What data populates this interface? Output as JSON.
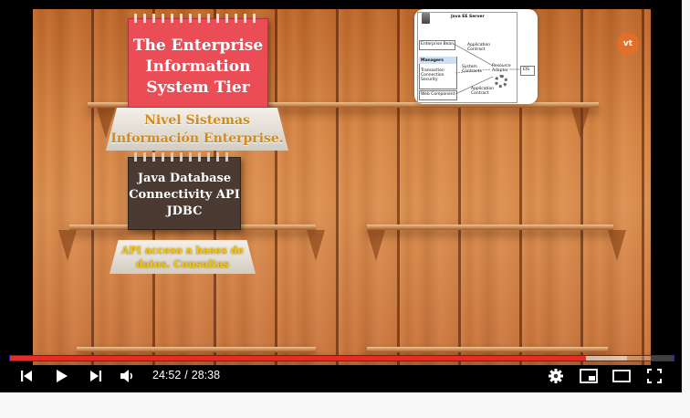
{
  "video": {
    "notepad_lines": [
      "The Enterprise",
      "Information",
      "System Tier"
    ],
    "banner1_lines": [
      "Nivel Sistemas",
      "Información Enterprise."
    ],
    "chalkboard_lines": [
      "Java Database",
      "Connectivity API",
      "JDBC"
    ],
    "banner2_lines": [
      "API acceso a bases de",
      "datos. Consultas"
    ],
    "logo_text": "vt",
    "diagram": {
      "title": "Java EE Server",
      "enterprise_bean": "Enterprise Bean",
      "application_contract_top": [
        "Application",
        "Contract"
      ],
      "managers": "Managers",
      "managers_items": [
        "Transaction",
        "Connection",
        "Security"
      ],
      "system_contracts": [
        "System",
        "Contracts"
      ],
      "resource_adapter": [
        "Resource",
        "Adapter"
      ],
      "eis": "EIS",
      "web_component": "Web Component",
      "application_contract_bottom": [
        "Application",
        "Contract"
      ]
    }
  },
  "player": {
    "current_time": "24:52",
    "separator": "/",
    "duration": "28:38",
    "progress_fraction": 0.868,
    "buffered_fraction": 0.93,
    "accent_color": "#e52d27",
    "icons": [
      "previous-icon",
      "play-icon",
      "next-icon",
      "volume-icon",
      "settings-icon",
      "miniplayer-icon",
      "theater-icon",
      "fullscreen-icon"
    ]
  }
}
